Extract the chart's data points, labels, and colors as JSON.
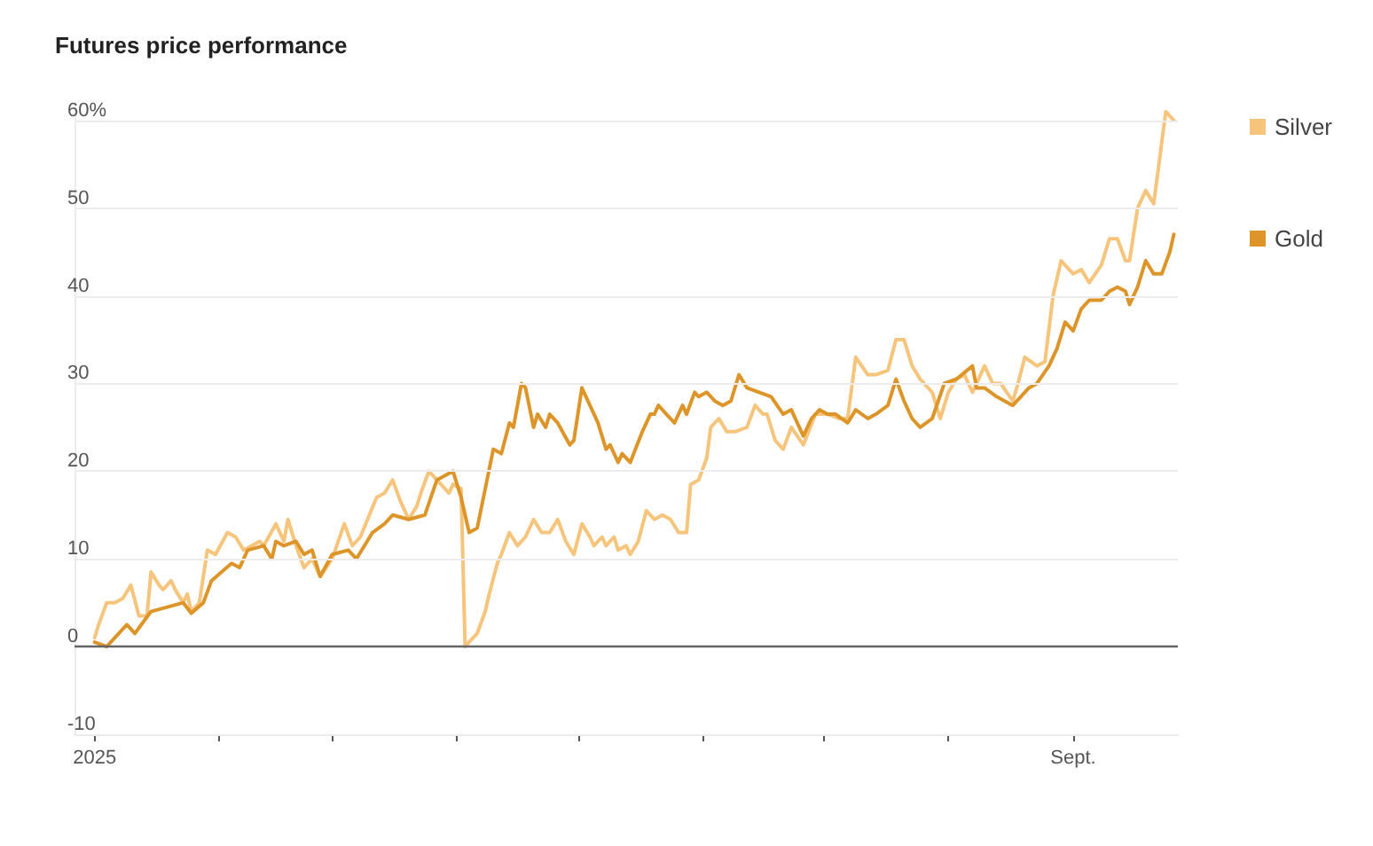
{
  "chart_data": {
    "type": "line",
    "title": "Futures price performance",
    "xlim": [
      "2024-12-27",
      "2025-09-27"
    ],
    "xticks": [
      {
        "value": "2025-01-01",
        "label": "2025"
      },
      {
        "value": "2025-02-01",
        "label": null
      },
      {
        "value": "2025-03-01",
        "label": null
      },
      {
        "value": "2025-04-01",
        "label": null
      },
      {
        "value": "2025-05-01",
        "label": null
      },
      {
        "value": "2025-06-01",
        "label": null
      },
      {
        "value": "2025-07-01",
        "label": null
      },
      {
        "value": "2025-08-01",
        "label": null
      },
      {
        "value": "2025-09-01",
        "label": "Sept."
      }
    ],
    "ylim": [
      -10,
      62
    ],
    "yticks": [
      -10,
      0,
      10,
      20,
      30,
      40,
      {
        "value": 50,
        "label": "50"
      },
      {
        "value": 60,
        "label": "60%"
      }
    ],
    "grid": "y",
    "legend": "top right",
    "marker": "none",
    "line_style": "solid",
    "ref_lines": [
      {
        "axis": "y",
        "value": 0,
        "color": "#666666"
      }
    ],
    "series": [
      {
        "name": "Silver",
        "color": "#f7c47c",
        "x": [
          "2025-01-01",
          "2025-01-02",
          "2025-01-04",
          "2025-01-06",
          "2025-01-08",
          "2025-01-10",
          "2025-01-12",
          "2025-01-14",
          "2025-01-15",
          "2025-01-17",
          "2025-01-18",
          "2025-01-20",
          "2025-01-21",
          "2025-01-23",
          "2025-01-24",
          "2025-01-25",
          "2025-01-27",
          "2025-01-29",
          "2025-01-31",
          "2025-02-03",
          "2025-02-05",
          "2025-02-07",
          "2025-02-09",
          "2025-02-11",
          "2025-02-12",
          "2025-02-15",
          "2025-02-17",
          "2025-02-18",
          "2025-02-20",
          "2025-02-22",
          "2025-02-24",
          "2025-02-26",
          "2025-03-01",
          "2025-03-04",
          "2025-03-06",
          "2025-03-08",
          "2025-03-12",
          "2025-03-14",
          "2025-03-16",
          "2025-03-18",
          "2025-03-20",
          "2025-03-22",
          "2025-03-23",
          "2025-03-25",
          "2025-03-27",
          "2025-03-30",
          "2025-03-31",
          "2025-04-02",
          "2025-04-03",
          "2025-04-05",
          "2025-04-06",
          "2025-04-08",
          "2025-04-09",
          "2025-04-11",
          "2025-04-12",
          "2025-04-14",
          "2025-04-16",
          "2025-04-18",
          "2025-04-20",
          "2025-04-22",
          "2025-04-24",
          "2025-04-26",
          "2025-04-28",
          "2025-04-30",
          "2025-05-02",
          "2025-05-04",
          "2025-05-05",
          "2025-05-07",
          "2025-05-08",
          "2025-05-10",
          "2025-05-11",
          "2025-05-13",
          "2025-05-14",
          "2025-05-16",
          "2025-05-18",
          "2025-05-20",
          "2025-05-22",
          "2025-05-24",
          "2025-05-26",
          "2025-05-28",
          "2025-05-29",
          "2025-05-31",
          "2025-06-02",
          "2025-06-03",
          "2025-06-05",
          "2025-06-07",
          "2025-06-09",
          "2025-06-12",
          "2025-06-14",
          "2025-06-16",
          "2025-06-17",
          "2025-06-19",
          "2025-06-21",
          "2025-06-23",
          "2025-06-26",
          "2025-06-29",
          "2025-07-02",
          "2025-07-05",
          "2025-07-07",
          "2025-07-09",
          "2025-07-12",
          "2025-07-14",
          "2025-07-17",
          "2025-07-19",
          "2025-07-21",
          "2025-07-23",
          "2025-07-25",
          "2025-07-28",
          "2025-07-30",
          "2025-08-01",
          "2025-08-03",
          "2025-08-05",
          "2025-08-07",
          "2025-08-10",
          "2025-08-12",
          "2025-08-14",
          "2025-08-17",
          "2025-08-18",
          "2025-08-20",
          "2025-08-23",
          "2025-08-25",
          "2025-08-27",
          "2025-08-29",
          "2025-09-01",
          "2025-09-03",
          "2025-09-05",
          "2025-09-08",
          "2025-09-10",
          "2025-09-12",
          "2025-09-14",
          "2025-09-15",
          "2025-09-17",
          "2025-09-19",
          "2025-09-21",
          "2025-09-23",
          "2025-09-24",
          "2025-09-26"
        ],
        "values": [
          1,
          2.5,
          5,
          5,
          5.5,
          7,
          3.5,
          3.5,
          8.5,
          7,
          6.5,
          7.5,
          6.5,
          5,
          6,
          4,
          5,
          11,
          10.5,
          13,
          12.5,
          11,
          11.5,
          12,
          11.5,
          14,
          12,
          14.5,
          11.5,
          9,
          10,
          8,
          10,
          14,
          11.5,
          12.5,
          17,
          17.5,
          19,
          16.5,
          14.5,
          16,
          17.5,
          20,
          19,
          17.5,
          18.5,
          18,
          0,
          1,
          1.5,
          4,
          6,
          9.5,
          10.5,
          13,
          11.5,
          12.5,
          14.5,
          13,
          13,
          14.5,
          12,
          10.5,
          14,
          12.5,
          11.5,
          12.5,
          11.5,
          12.5,
          11,
          11.5,
          10.5,
          12,
          15.5,
          14.5,
          15,
          14.5,
          13,
          13,
          18.5,
          19,
          21.5,
          25,
          26,
          24.5,
          24.5,
          25,
          27.5,
          26.5,
          26.5,
          23.5,
          22.5,
          25,
          23,
          26.5,
          26.5,
          26,
          26,
          33,
          31,
          31,
          31.5,
          35,
          35,
          32,
          30.5,
          29,
          26,
          29,
          30.5,
          31,
          29,
          32,
          30,
          30,
          28,
          29.5,
          33,
          32,
          32.5,
          40,
          44,
          42.5,
          43,
          41.5,
          43.5,
          46.5,
          46.5,
          44,
          44,
          50,
          52,
          50.5,
          57.5,
          61,
          60
        ]
      },
      {
        "name": "Gold",
        "color": "#dd9428",
        "x": [
          "2025-01-01",
          "2025-01-04",
          "2025-01-09",
          "2025-01-11",
          "2025-01-15",
          "2025-01-19",
          "2025-01-23",
          "2025-01-25",
          "2025-01-28",
          "2025-01-30",
          "2025-02-04",
          "2025-02-06",
          "2025-02-08",
          "2025-02-12",
          "2025-02-14",
          "2025-02-15",
          "2025-02-17",
          "2025-02-20",
          "2025-02-22",
          "2025-02-24",
          "2025-02-26",
          "2025-03-01",
          "2025-03-05",
          "2025-03-07",
          "2025-03-11",
          "2025-03-14",
          "2025-03-16",
          "2025-03-20",
          "2025-03-24",
          "2025-03-27",
          "2025-03-31",
          "2025-04-02",
          "2025-04-04",
          "2025-04-06",
          "2025-04-10",
          "2025-04-12",
          "2025-04-14",
          "2025-04-15",
          "2025-04-17",
          "2025-04-18",
          "2025-04-20",
          "2025-04-21",
          "2025-04-23",
          "2025-04-24",
          "2025-04-26",
          "2025-04-29",
          "2025-04-30",
          "2025-05-02",
          "2025-05-04",
          "2025-05-06",
          "2025-05-08",
          "2025-05-09",
          "2025-05-11",
          "2025-05-12",
          "2025-05-14",
          "2025-05-17",
          "2025-05-19",
          "2025-05-20",
          "2025-05-21",
          "2025-05-23",
          "2025-05-25",
          "2025-05-27",
          "2025-05-28",
          "2025-05-30",
          "2025-05-31",
          "2025-06-02",
          "2025-06-04",
          "2025-06-06",
          "2025-06-08",
          "2025-06-10",
          "2025-06-12",
          "2025-06-15",
          "2025-06-18",
          "2025-06-21",
          "2025-06-23",
          "2025-06-25",
          "2025-06-26",
          "2025-06-28",
          "2025-06-30",
          "2025-07-02",
          "2025-07-04",
          "2025-07-07",
          "2025-07-09",
          "2025-07-12",
          "2025-07-14",
          "2025-07-17",
          "2025-07-19",
          "2025-07-21",
          "2025-07-23",
          "2025-07-25",
          "2025-07-28",
          "2025-07-31",
          "2025-08-03",
          "2025-08-07",
          "2025-08-08",
          "2025-08-10",
          "2025-08-13",
          "2025-08-17",
          "2025-08-19",
          "2025-08-21",
          "2025-08-23",
          "2025-08-26",
          "2025-08-28",
          "2025-08-30",
          "2025-09-01",
          "2025-09-03",
          "2025-09-05",
          "2025-09-08",
          "2025-09-10",
          "2025-09-12",
          "2025-09-14",
          "2025-09-15",
          "2025-09-17",
          "2025-09-19",
          "2025-09-21",
          "2025-09-23",
          "2025-09-25",
          "2025-09-26"
        ],
        "values": [
          0.5,
          0,
          2.5,
          1.5,
          4,
          4.5,
          5,
          3.8,
          5,
          7.5,
          9.5,
          9,
          11,
          11.5,
          10,
          12,
          11.5,
          12,
          10.5,
          11,
          8,
          10.5,
          11,
          10,
          13,
          14,
          15,
          14.5,
          15,
          19,
          20,
          17,
          13,
          13.5,
          22.5,
          22,
          25.5,
          25,
          30,
          29.5,
          25,
          26.5,
          25,
          26.5,
          25.5,
          23,
          23.5,
          29.5,
          27.5,
          25.5,
          22.5,
          23,
          21,
          22,
          21,
          24.5,
          26.5,
          26.5,
          27.5,
          26.5,
          25.5,
          27.5,
          26.5,
          29,
          28.5,
          29,
          28,
          27.5,
          28,
          31,
          29.5,
          29,
          28.5,
          26.5,
          27,
          25,
          24,
          26,
          27,
          26.5,
          26.5,
          25.5,
          27,
          26,
          26.5,
          27.5,
          30.5,
          28,
          26,
          25,
          26,
          30,
          30.5,
          32,
          29.5,
          29.5,
          28.5,
          27.5,
          28.5,
          29.5,
          30,
          32,
          34,
          37,
          36,
          38.5,
          39.5,
          39.5,
          40.5,
          41,
          40.5,
          39,
          41,
          44,
          42.5,
          42.5,
          45,
          47
        ]
      }
    ]
  }
}
